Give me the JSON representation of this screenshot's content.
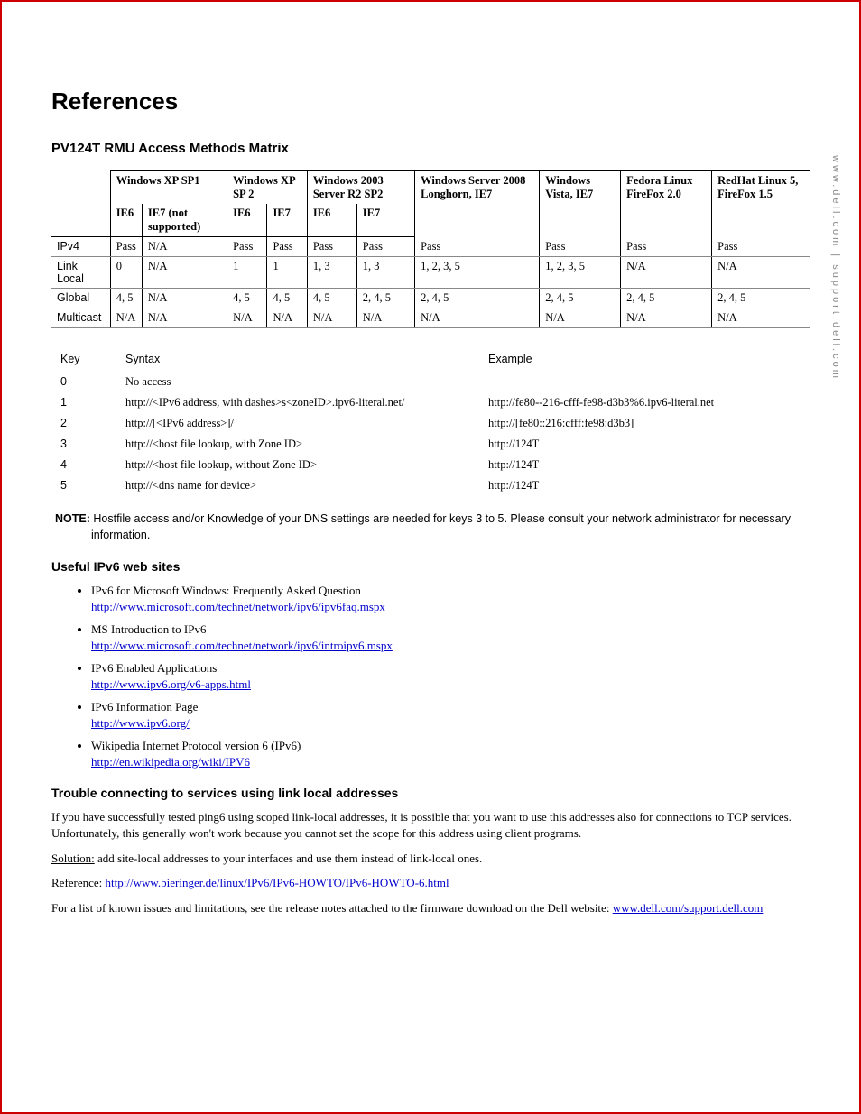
{
  "sidebar": "www.dell.com | support.dell.com",
  "title": "References",
  "section1_title": "PV124T RMU Access Methods Matrix",
  "matrix": {
    "top_headers": [
      "",
      "Windows XP SP1",
      "Windows XP SP 2",
      "Windows 2003 Server R2 SP2",
      "Windows Server 2008 Longhorn, IE7",
      "Windows Vista, IE7",
      "Fedora Linux FireFox 2.0",
      "RedHat Linux 5, FireFox 1.5"
    ],
    "sub_headers": [
      "",
      "IE6",
      "IE7 (not supported)",
      "IE6",
      "IE7",
      "IE6",
      "IE7",
      "",
      "",
      "",
      ""
    ],
    "rows": [
      {
        "label": "IPv4",
        "cells": [
          "Pass",
          "N/A",
          "Pass",
          "Pass",
          "Pass",
          "Pass",
          "Pass",
          "Pass",
          "Pass",
          "Pass"
        ]
      },
      {
        "label": "Link Local",
        "cells": [
          "0",
          "N/A",
          "1",
          "1",
          "1, 3",
          "1, 3",
          "1, 2, 3, 5",
          "1, 2, 3, 5",
          "N/A",
          "N/A"
        ]
      },
      {
        "label": "Global",
        "cells": [
          "4, 5",
          "N/A",
          "4, 5",
          "4, 5",
          "4, 5",
          "2, 4, 5",
          "2, 4, 5",
          "2, 4, 5",
          "2, 4, 5",
          "2, 4, 5"
        ]
      },
      {
        "label": "Multicast",
        "cells": [
          "N/A",
          "N/A",
          "N/A",
          "N/A",
          "N/A",
          "N/A",
          "N/A",
          "N/A",
          "N/A",
          "N/A"
        ]
      }
    ]
  },
  "key_table": {
    "headers": [
      "Key",
      "Syntax",
      "Example"
    ],
    "rows": [
      {
        "key": "0",
        "syntax": "No access",
        "example": ""
      },
      {
        "key": "1",
        "syntax": "http://<IPv6 address, with dashes>s<zoneID>.ipv6-literal.net/",
        "example": "http://fe80--216-cfff-fe98-d3b3%6.ipv6-literal.net"
      },
      {
        "key": "2",
        "syntax": "http://[<IPv6 address>]/",
        "example": "http://[fe80::216:cfff:fe98:d3b3]"
      },
      {
        "key": "3",
        "syntax": "http://<host file lookup, with Zone ID>",
        "example": "http://124T"
      },
      {
        "key": "4",
        "syntax": "http://<host file lookup, without Zone ID>",
        "example": "http://124T"
      },
      {
        "key": "5",
        "syntax": "http://<dns name for device>",
        "example": "http://124T"
      }
    ]
  },
  "note_label": "NOTE:",
  "note_text": "Hostfile access and/or Knowledge of your DNS settings are needed for keys 3 to 5.   Please consult your network administrator for necessary information.",
  "section2_title": "Useful IPv6 web sites",
  "links": [
    {
      "text": "IPv6 for Microsoft Windows: Frequently Asked Question",
      "url": "http://www.microsoft.com/technet/network/ipv6/ipv6faq.mspx"
    },
    {
      "text": "MS Introduction to IPv6",
      "url": "http://www.microsoft.com/technet/network/ipv6/introipv6.mspx"
    },
    {
      "text": "IPv6 Enabled Applications",
      "url": "http://www.ipv6.org/v6-apps.html"
    },
    {
      "text": "IPv6 Information Page",
      "url": "http://www.ipv6.org/"
    },
    {
      "text": "Wikipedia Internet Protocol version 6 (IPv6)",
      "url": "http://en.wikipedia.org/wiki/IPV6"
    }
  ],
  "section3_title": "Trouble connecting to services using link local addresses",
  "trouble_p1": "If you have successfully tested ping6 using scoped link-local addresses, it is possible that you want to use this addresses also for connections to TCP services. Unfortunately, this generally won't work because you cannot set the scope for this address using client programs.",
  "solution_label": "Solution:",
  "solution_text": " add site-local addresses to your interfaces and use them instead of link-local ones.",
  "ref_label": "Reference: ",
  "ref_url": "http://www.bieringer.de/linux/IPv6/IPv6-HOWTO/IPv6-HOWTO-6.html",
  "final_text": "For a list of known issues and limitations, see the release notes attached to the firmware download on the Dell website: ",
  "final_url": "www.dell.com/support.dell.com "
}
